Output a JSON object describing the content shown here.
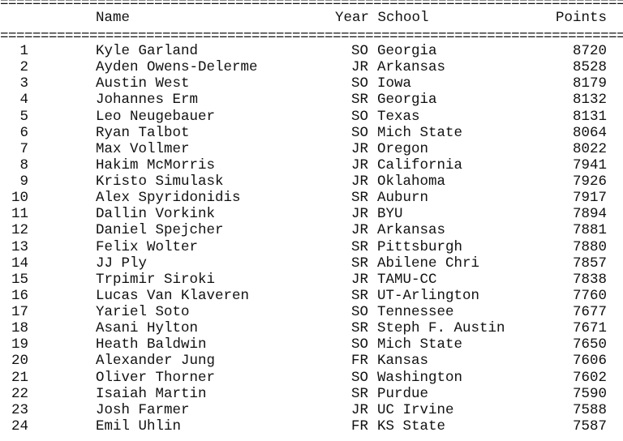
{
  "header": {
    "name": "Name",
    "year_school": "Year School",
    "points": "Points"
  },
  "rows": [
    {
      "rank": "1",
      "name": "Kyle Garland",
      "year": "SO",
      "school": "Georgia",
      "points": "8720"
    },
    {
      "rank": "2",
      "name": "Ayden Owens-Delerme",
      "year": "JR",
      "school": "Arkansas",
      "points": "8528"
    },
    {
      "rank": "3",
      "name": "Austin West",
      "year": "SO",
      "school": "Iowa",
      "points": "8179"
    },
    {
      "rank": "4",
      "name": "Johannes Erm",
      "year": "SR",
      "school": "Georgia",
      "points": "8132"
    },
    {
      "rank": "5",
      "name": "Leo Neugebauer",
      "year": "SO",
      "school": "Texas",
      "points": "8131"
    },
    {
      "rank": "6",
      "name": "Ryan Talbot",
      "year": "SO",
      "school": "Mich State",
      "points": "8064"
    },
    {
      "rank": "7",
      "name": "Max Vollmer",
      "year": "JR",
      "school": "Oregon",
      "points": "8022"
    },
    {
      "rank": "8",
      "name": "Hakim McMorris",
      "year": "JR",
      "school": "California",
      "points": "7941"
    },
    {
      "rank": "9",
      "name": "Kristo Simulask",
      "year": "JR",
      "school": "Oklahoma",
      "points": "7926"
    },
    {
      "rank": "10",
      "name": "Alex Spyridonidis",
      "year": "SR",
      "school": "Auburn",
      "points": "7917"
    },
    {
      "rank": "11",
      "name": "Dallin Vorkink",
      "year": "JR",
      "school": "BYU",
      "points": "7894"
    },
    {
      "rank": "12",
      "name": "Daniel Spejcher",
      "year": "JR",
      "school": "Arkansas",
      "points": "7881"
    },
    {
      "rank": "13",
      "name": "Felix Wolter",
      "year": "SR",
      "school": "Pittsburgh",
      "points": "7880"
    },
    {
      "rank": "14",
      "name": "JJ Ply",
      "year": "SR",
      "school": "Abilene Chri",
      "points": "7857"
    },
    {
      "rank": "15",
      "name": "Trpimir Siroki",
      "year": "JR",
      "school": "TAMU-CC",
      "points": "7838"
    },
    {
      "rank": "16",
      "name": "Lucas Van Klaveren",
      "year": "SR",
      "school": "UT-Arlington",
      "points": "7760"
    },
    {
      "rank": "17",
      "name": "Yariel Soto",
      "year": "SO",
      "school": "Tennessee",
      "points": "7677"
    },
    {
      "rank": "18",
      "name": "Asani Hylton",
      "year": "SR",
      "school": "Steph F. Austin",
      "points": "7671"
    },
    {
      "rank": "19",
      "name": "Heath Baldwin",
      "year": "SO",
      "school": "Mich State",
      "points": "7650"
    },
    {
      "rank": "20",
      "name": "Alexander Jung",
      "year": "FR",
      "school": "Kansas",
      "points": "7606"
    },
    {
      "rank": "21",
      "name": "Oliver Thorner",
      "year": "SO",
      "school": "Washington",
      "points": "7602"
    },
    {
      "rank": "22",
      "name": "Isaiah Martin",
      "year": "SR",
      "school": "Purdue",
      "points": "7590"
    },
    {
      "rank": "23",
      "name": "Josh Farmer",
      "year": "JR",
      "school": "UC Irvine",
      "points": "7588"
    },
    {
      "rank": "24",
      "name": "Emil Uhlin",
      "year": "FR",
      "school": "KS State",
      "points": "7587"
    }
  ]
}
